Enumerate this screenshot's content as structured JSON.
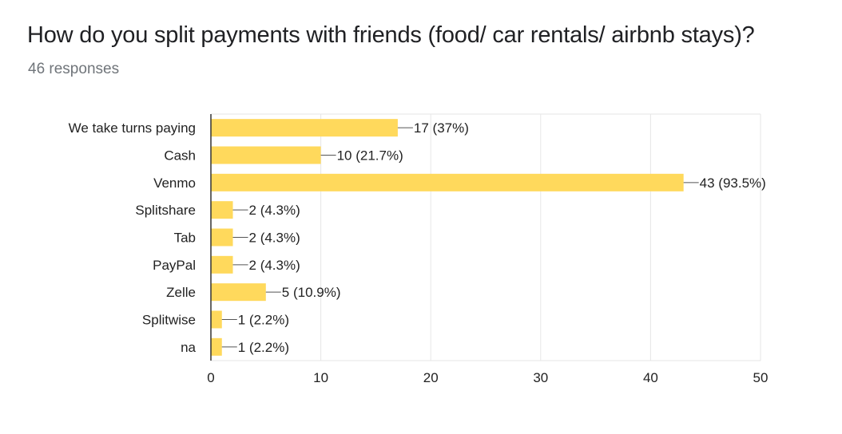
{
  "form": {
    "question": "How do you split payments with friends (food/ car rentals/ airbnb stays)?",
    "responses": "46 responses"
  },
  "colors": {
    "bar": "#FFD95C",
    "grid": "#e6e6e6",
    "axis": "#333333",
    "text": "#222222"
  },
  "chart_data": {
    "type": "bar",
    "orientation": "horizontal",
    "categories": [
      "We take turns paying",
      "Cash",
      "Venmo",
      "Splitshare",
      "Tab",
      "PayPal",
      "Zelle",
      "Splitwise",
      "na"
    ],
    "values": [
      17,
      10,
      43,
      2,
      2,
      2,
      5,
      1,
      1
    ],
    "data_labels": [
      "17 (37%)",
      "10 (21.7%)",
      "43 (93.5%)",
      "2 (4.3%)",
      "2 (4.3%)",
      "2 (4.3%)",
      "5 (10.9%)",
      "1 (2.2%)",
      "1 (2.2%)"
    ],
    "xlim": [
      0,
      50
    ],
    "xticks": [
      0,
      10,
      20,
      30,
      40,
      50
    ],
    "grid": true,
    "legend": "none"
  }
}
